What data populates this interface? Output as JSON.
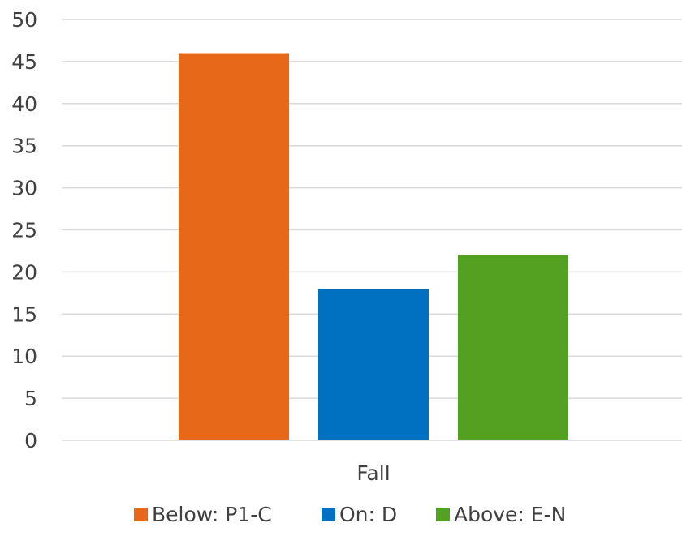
{
  "chart_data": {
    "type": "bar",
    "categories": [
      "Fall"
    ],
    "series": [
      {
        "name": "Below: P1-C",
        "values": [
          46
        ],
        "color": "#e8681a"
      },
      {
        "name": "On: D",
        "values": [
          18
        ],
        "color": "#0070c0"
      },
      {
        "name": "Above: E-N",
        "values": [
          22
        ],
        "color": "#54a021"
      }
    ],
    "y_ticks": [
      "0",
      "5",
      "10",
      "15",
      "20",
      "25",
      "30",
      "35",
      "40",
      "45",
      "50"
    ],
    "ylim": [
      0,
      50
    ],
    "grid": true,
    "legend_position": "bottom"
  }
}
